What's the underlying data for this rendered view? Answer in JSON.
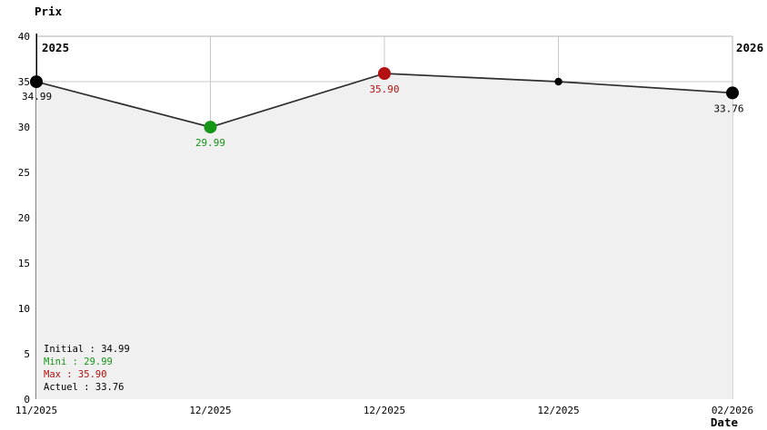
{
  "chart_data": {
    "type": "line",
    "ylabel": "Prix",
    "xlabel": "Date",
    "ylim": [
      0,
      40
    ],
    "y_ticks": [
      40,
      35,
      30,
      25,
      20,
      15,
      10,
      5,
      0
    ],
    "x_ticks": [
      "11/2025",
      "12/2025",
      "12/2025",
      "12/2025",
      "02/2026"
    ],
    "year_markers": [
      {
        "label": "2025",
        "side": "left"
      },
      {
        "label": "2026",
        "side": "right"
      }
    ],
    "points": [
      {
        "x": "11/2025",
        "value": 34.99,
        "label": "34.99",
        "color": "#000000",
        "size": "large",
        "label_pos": "below-left",
        "name": "data-point-initial"
      },
      {
        "x": "12/2025",
        "value": 29.99,
        "label": "29.99",
        "color": "#169616",
        "size": "large",
        "label_pos": "below",
        "name": "data-point-min"
      },
      {
        "x": "12/2025",
        "value": 35.9,
        "label": "35.90",
        "color": "#b41212",
        "size": "large",
        "label_pos": "below",
        "name": "data-point-max"
      },
      {
        "x": "12/2025",
        "value": 35.0,
        "label": "",
        "color": "#000000",
        "size": "small",
        "label_pos": "none",
        "name": "data-point-intermediate"
      },
      {
        "x": "02/2026",
        "value": 33.76,
        "label": "33.76",
        "color": "#000000",
        "size": "large",
        "label_pos": "below",
        "name": "data-point-current"
      }
    ],
    "legend": [
      {
        "label": "Initial : 34.99",
        "color": "#000000"
      },
      {
        "label": "Mini : 29.99",
        "color": "#169616"
      },
      {
        "label": "Max : 35.90",
        "color": "#b41212"
      },
      {
        "label": "Actuel : 33.76",
        "color": "#000000"
      }
    ],
    "legend_position": "bottom-left",
    "grid": true,
    "colors": {
      "area_fill": "#f0f0f0",
      "line": "#2e2e2e",
      "grid": "#c8c8c8",
      "border": "#b0b0b0",
      "axis": "#000000",
      "text": "#000000"
    }
  }
}
